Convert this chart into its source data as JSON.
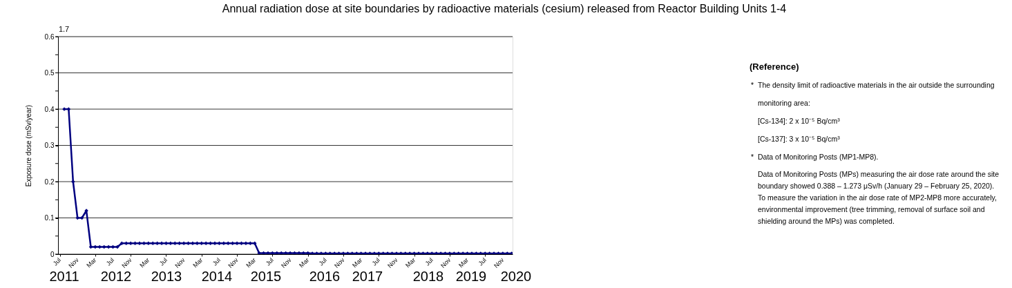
{
  "chart_data": {
    "type": "line",
    "title": "Annual radiation dose at site boundaries by radioactive materials (cesium) released from Reactor Building Units 1-4",
    "ylabel": "Exposure dose (mSv/year)",
    "categories": [
      "Jul",
      null,
      null,
      null,
      "Nov",
      null,
      null,
      null,
      "Mar",
      null,
      null,
      null,
      "Jul",
      null,
      null,
      null,
      "Nov",
      null,
      null,
      null,
      "Mar",
      null,
      null,
      null,
      "Jul",
      null,
      null,
      null,
      "Nov",
      null,
      null,
      null,
      "Mar",
      null,
      null,
      null,
      "Jul",
      null,
      null,
      null,
      "Nov",
      null,
      null,
      null,
      "Mar",
      null,
      null,
      null,
      "Jul",
      null,
      null,
      null,
      "Nov",
      null,
      null,
      null,
      "Mar",
      null,
      null,
      null,
      "Jul",
      null,
      null,
      null,
      "Nov",
      null,
      null,
      null,
      "Mar",
      null,
      null,
      null,
      "Jul",
      null,
      null,
      null,
      "Nov",
      null,
      null,
      null,
      "Mar",
      null,
      null,
      null,
      "Jul",
      null,
      null,
      null,
      "Nov",
      null,
      null,
      null,
      "Mar",
      null,
      null,
      null,
      "Jul",
      null,
      null,
      null,
      "Nov",
      null,
      null
    ],
    "series": [
      {
        "color": "#000080",
        "values": [
          null,
          0.4,
          0.4,
          0.2,
          0.1,
          0.1,
          0.12,
          0.02,
          0.02,
          0.02,
          0.02,
          0.02,
          0.02,
          0.02,
          0.03,
          0.03,
          0.03,
          0.03,
          0.03,
          0.03,
          0.03,
          0.03,
          0.03,
          0.03,
          0.03,
          0.03,
          0.03,
          0.03,
          0.03,
          0.03,
          0.03,
          0.03,
          0.03,
          0.03,
          0.03,
          0.03,
          0.03,
          0.03,
          0.03,
          0.03,
          0.03,
          0.03,
          0.03,
          0.03,
          0.03,
          0.003,
          0.003,
          0.003,
          0.003,
          0.003,
          0.003,
          0.003,
          0.003,
          0.003,
          0.003,
          0.003,
          0.003,
          0.002,
          0.002,
          0.002,
          0.002,
          0.002,
          0.002,
          0.002,
          0.002,
          0.002,
          0.002,
          0.002,
          0.002,
          0.002,
          0.002,
          0.002,
          0.002,
          0.002,
          0.002,
          0.002,
          0.002,
          0.002,
          0.002,
          0.002,
          0.002,
          0.002,
          0.002,
          0.002,
          0.002,
          0.002,
          0.002,
          0.002,
          0.002,
          0.002,
          0.002,
          0.002,
          0.002,
          0.002,
          0.002,
          0.002,
          0.002,
          0.002,
          0.002,
          0.002,
          0.002,
          0.002,
          0.002
        ],
        "value_labels": [
          "1.7",
          null,
          null,
          null,
          null,
          null,
          null,
          null,
          null,
          null,
          null,
          null,
          null,
          null,
          null,
          null,
          null,
          null,
          null,
          null,
          null,
          null,
          null,
          null,
          null,
          null,
          null,
          null,
          null,
          null,
          null,
          null,
          null,
          null,
          null,
          null,
          null,
          null,
          null,
          null,
          null,
          null,
          null,
          null,
          null,
          null,
          null,
          null,
          null,
          null,
          null,
          null,
          null,
          null,
          null,
          null,
          null,
          null,
          null,
          null,
          null,
          null,
          null,
          null,
          null,
          null,
          null,
          null,
          null,
          null,
          null,
          null,
          null,
          null,
          null,
          null,
          null,
          null,
          null,
          null,
          null,
          null,
          null,
          null,
          null,
          null,
          null,
          null,
          null,
          null,
          null,
          null,
          null,
          null,
          null,
          null,
          null,
          null,
          null,
          null,
          null,
          null,
          null
        ]
      }
    ],
    "ylim": [
      0,
      0.6
    ],
    "yticks": [
      0,
      {
        "value": 0.05,
        "label": null
      },
      0.1,
      {
        "value": 0.15,
        "label": null
      },
      0.2,
      {
        "value": 0.25,
        "label": null
      },
      0.3,
      {
        "value": 0.35,
        "label": null
      },
      0.4,
      {
        "value": 0.45,
        "label": null
      },
      0.5,
      {
        "value": 0.55,
        "label": null
      },
      0.6
    ],
    "grid": "y",
    "marker": "diamond",
    "line_style": "solid",
    "annotations": [
      "(Reference)",
      "* The density limit of radioactive materials in the air outside the surrounding monitoring area:",
      "[Cs-134]: 2 x 10⁻⁵ Bq/cm³",
      "[Cs-137]: 3 x 10⁻⁵ Bq/cm³",
      "* Data of Monitoring Posts (MP1-MP8).",
      "Data of Monitoring Posts (MPs) measuring the air dose rate around the site boundary showed 0.388 – 1.273 μSv/h (January 29 – February 25, 2020).",
      "To measure the variation in the air dose rate of MP2-MP8 more accurately, environmental improvement (tree trimming, removal of surface soil and shielding around the MPs) was completed.",
      "2011",
      "2012",
      "2013",
      "2014",
      "2015",
      "2016",
      "2017",
      "2018",
      "2019",
      "2020"
    ]
  }
}
